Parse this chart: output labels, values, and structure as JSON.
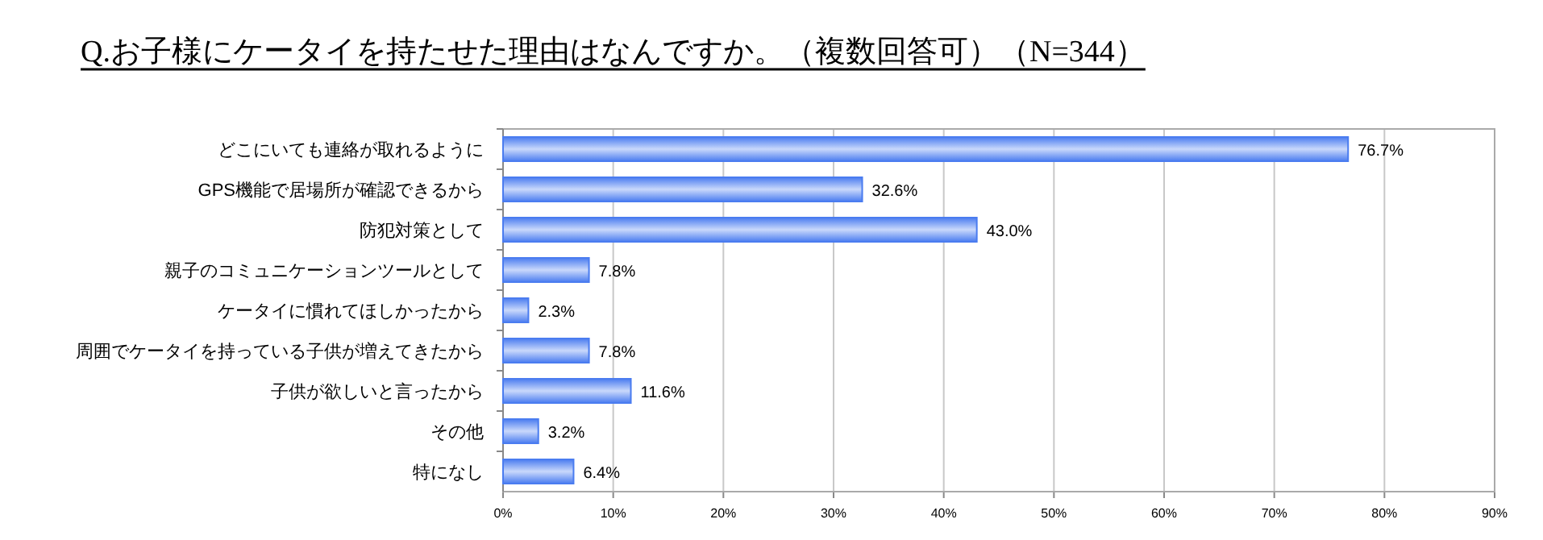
{
  "chart_data": {
    "type": "bar",
    "orientation": "horizontal",
    "title": "Q.お子様にケータイを持たせた理由はなんですか。（複数回答可）（N=344）",
    "categories": [
      "どこにいても連絡が取れるように",
      "GPS機能で居場所が確認できるから",
      "防犯対策として",
      "親子のコミュニケーションツールとして",
      "ケータイに慣れてほしかったから",
      "周囲でケータイを持っている子供が増えてきたから",
      "子供が欲しいと言ったから",
      "その他",
      "特になし"
    ],
    "values": [
      76.7,
      32.6,
      43.0,
      7.8,
      2.3,
      7.8,
      11.6,
      3.2,
      6.4
    ],
    "value_labels": [
      "76.7%",
      "32.6%",
      "43.0%",
      "7.8%",
      "2.3%",
      "7.8%",
      "11.6%",
      "3.2%",
      "6.4%"
    ],
    "color": "#4a7cf0",
    "xlim": [
      0,
      90
    ],
    "xticks": [
      {
        "value": 0,
        "label": "0%"
      },
      {
        "value": 10,
        "label": "10%"
      },
      {
        "value": 20,
        "label": "20%"
      },
      {
        "value": 30,
        "label": "30%"
      },
      {
        "value": 40,
        "label": "40%"
      },
      {
        "value": 50,
        "label": "50%"
      },
      {
        "value": 60,
        "label": "60%"
      },
      {
        "value": 70,
        "label": "70%"
      },
      {
        "value": 80,
        "label": "80%"
      },
      {
        "value": 90,
        "label": "90%"
      }
    ],
    "grid": "x"
  }
}
